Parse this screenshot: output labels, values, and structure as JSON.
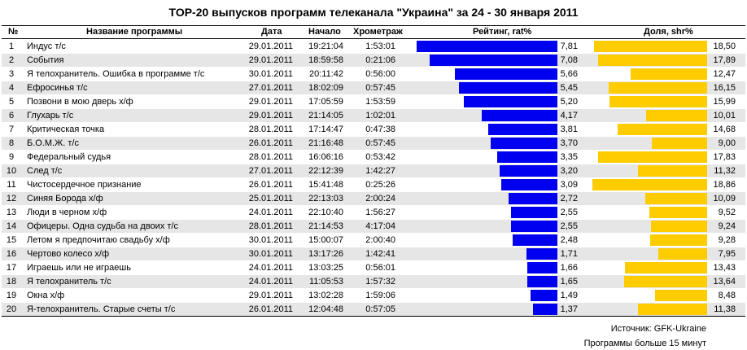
{
  "title": "TOP-20 выпусков программ телеканала \"Украина\" за  24 - 30 января 2011",
  "headers": {
    "num": "№",
    "name": "Название программы",
    "date": "Дата",
    "start": "Начало",
    "duration": "Хрометраж",
    "rating": "Рейтинг, rat%",
    "share": "Доля, shr%"
  },
  "colors": {
    "rating_bar": "#0000f0",
    "share_bar": "#ffcc00",
    "alt_row": "#e6e6e6"
  },
  "rows": [
    {
      "num": "1",
      "name": "Индус т/с",
      "date": "29.01.2011",
      "start": "19:21:04",
      "duration": "1:53:01",
      "rating": "7,81",
      "share": "18,50"
    },
    {
      "num": "2",
      "name": "События",
      "date": "29.01.2011",
      "start": "18:59:58",
      "duration": "0:21:06",
      "rating": "7,08",
      "share": "17,89"
    },
    {
      "num": "3",
      "name": "Я телохранитель. Ошибка в программе т/с",
      "date": "30.01.2011",
      "start": "20:11:42",
      "duration": "0:56:00",
      "rating": "5,66",
      "share": "12,47"
    },
    {
      "num": "4",
      "name": "Ефросинья т/с",
      "date": "27.01.2011",
      "start": "18:02:09",
      "duration": "0:57:45",
      "rating": "5,45",
      "share": "16,15"
    },
    {
      "num": "5",
      "name": "Позвони в мою дверь х/ф",
      "date": "29.01.2011",
      "start": "17:05:59",
      "duration": "1:53:59",
      "rating": "5,20",
      "share": "15,99"
    },
    {
      "num": "6",
      "name": "Глухарь т/с",
      "date": "29.01.2011",
      "start": "21:14:05",
      "duration": "1:02:01",
      "rating": "4,17",
      "share": "10,01"
    },
    {
      "num": "7",
      "name": "Критическая точка",
      "date": "28.01.2011",
      "start": "17:14:47",
      "duration": "0:47:38",
      "rating": "3,81",
      "share": "14,68"
    },
    {
      "num": "8",
      "name": "Б.О.М.Ж. т/с",
      "date": "26.01.2011",
      "start": "21:16:48",
      "duration": "0:57:45",
      "rating": "3,70",
      "share": "9,00"
    },
    {
      "num": "9",
      "name": "Федеральный судья",
      "date": "28.01.2011",
      "start": "16:06:16",
      "duration": "0:53:42",
      "rating": "3,35",
      "share": "17,83"
    },
    {
      "num": "10",
      "name": "След т/с",
      "date": "27.01.2011",
      "start": "22:12:39",
      "duration": "1:42:27",
      "rating": "3,20",
      "share": "11,32"
    },
    {
      "num": "11",
      "name": "Чистосердечное признание",
      "date": "26.01.2011",
      "start": "15:41:48",
      "duration": "0:25:26",
      "rating": "3,09",
      "share": "18,86"
    },
    {
      "num": "12",
      "name": "Синяя Борода х/ф",
      "date": "25.01.2011",
      "start": "22:13:03",
      "duration": "2:00:24",
      "rating": "2,72",
      "share": "10,09"
    },
    {
      "num": "13",
      "name": "Люди в черном х/ф",
      "date": "24.01.2011",
      "start": "22:10:40",
      "duration": "1:56:27",
      "rating": "2,55",
      "share": "9,52"
    },
    {
      "num": "14",
      "name": "Офицеры. Одна судьба на двоих т/с",
      "date": "28.01.2011",
      "start": "21:14:53",
      "duration": "4:17:04",
      "rating": "2,55",
      "share": "9,24"
    },
    {
      "num": "15",
      "name": "Летом я предпочитаю свадьбу х/ф",
      "date": "30.01.2011",
      "start": "15:00:07",
      "duration": "2:00:40",
      "rating": "2,48",
      "share": "9,28"
    },
    {
      "num": "16",
      "name": "Чертово колесо х/ф",
      "date": "30.01.2011",
      "start": "13:17:26",
      "duration": "1:42:41",
      "rating": "1,71",
      "share": "7,95"
    },
    {
      "num": "17",
      "name": "Играешь или не играешь",
      "date": "24.01.2011",
      "start": "13:03:25",
      "duration": "0:56:01",
      "rating": "1,66",
      "share": "13,43"
    },
    {
      "num": "18",
      "name": "Я телохранитель т/с",
      "date": "24.01.2011",
      "start": "11:05:53",
      "duration": "1:57:32",
      "rating": "1,65",
      "share": "13,64"
    },
    {
      "num": "19",
      "name": "Окна х/ф",
      "date": "29.01.2011",
      "start": "13:02:28",
      "duration": "1:59:06",
      "rating": "1,49",
      "share": "8,48"
    },
    {
      "num": "20",
      "name": "Я-телохранитель. Старые счеты т/с",
      "date": "26.01.2011",
      "start": "12:04:48",
      "duration": "0:57:05",
      "rating": "1,37",
      "share": "11,38"
    }
  ],
  "chart_data": [
    {
      "type": "bar",
      "title": "Рейтинг, rat%",
      "categories": [
        "Индус т/с",
        "События",
        "Я телохранитель. Ошибка в программе т/с",
        "Ефросинья т/с",
        "Позвони в мою дверь х/ф",
        "Глухарь т/с",
        "Критическая точка",
        "Б.О.М.Ж. т/с",
        "Федеральный судья",
        "След т/с",
        "Чистосердечное признание",
        "Синяя Борода х/ф",
        "Люди в черном х/ф",
        "Офицеры. Одна судьба на двоих т/с",
        "Летом я предпочитаю свадьбу х/ф",
        "Чертово колесо х/ф",
        "Играешь или не играешь",
        "Я телохранитель т/с",
        "Окна х/ф",
        "Я-телохранитель. Старые счеты т/с"
      ],
      "values": [
        7.81,
        7.08,
        5.66,
        5.45,
        5.2,
        4.17,
        3.81,
        3.7,
        3.35,
        3.2,
        3.09,
        2.72,
        2.55,
        2.55,
        2.48,
        1.71,
        1.66,
        1.65,
        1.49,
        1.37
      ],
      "orientation": "horizontal",
      "direction": "right-to-left",
      "color": "#0000f0"
    },
    {
      "type": "bar",
      "title": "Доля, shr%",
      "categories": [
        "Индус т/с",
        "События",
        "Я телохранитель. Ошибка в программе т/с",
        "Ефросинья т/с",
        "Позвони в мою дверь х/ф",
        "Глухарь т/с",
        "Критическая точка",
        "Б.О.М.Ж. т/с",
        "Федеральный судья",
        "След т/с",
        "Чистосердечное признание",
        "Синяя Борода х/ф",
        "Люди в черном х/ф",
        "Офицеры. Одна судьба на двоих т/с",
        "Летом я предпочитаю свадьбу х/ф",
        "Чертово колесо х/ф",
        "Играешь или не играешь",
        "Я телохранитель т/с",
        "Окна х/ф",
        "Я-телохранитель. Старые счеты т/с"
      ],
      "values": [
        18.5,
        17.89,
        12.47,
        16.15,
        15.99,
        10.01,
        14.68,
        9.0,
        17.83,
        11.32,
        18.86,
        10.09,
        9.52,
        9.24,
        9.28,
        7.95,
        13.43,
        13.64,
        8.48,
        11.38
      ],
      "orientation": "horizontal",
      "direction": "right-to-left",
      "color": "#ffcc00"
    }
  ],
  "footer": {
    "source": "Источник: GFK-Ukraine",
    "note": "Программы больше 15 минут"
  }
}
